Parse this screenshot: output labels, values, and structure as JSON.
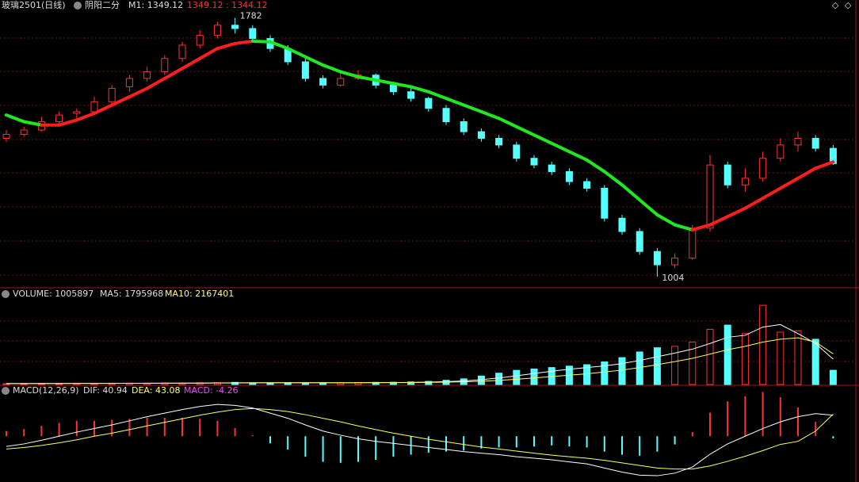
{
  "header": {
    "symbol": "玻璃2501(日线)",
    "indicator": "阴阳二分",
    "m1": "M1: 1349.12",
    "quote": "1349.12 : 1344.12"
  },
  "main": {
    "type": "candlestick",
    "ylim": [
      990,
      1800
    ],
    "up_color": "#ff3232",
    "down_color": "#54ffff",
    "rise_color": "#ff1e1e",
    "fall_color": "#1fe81f",
    "high_label": 1782,
    "low_label": 1004,
    "ohlc": [
      [
        1420,
        1445,
        1410,
        1432
      ],
      [
        1432,
        1455,
        1425,
        1445
      ],
      [
        1445,
        1485,
        1440,
        1470
      ],
      [
        1470,
        1500,
        1460,
        1490
      ],
      [
        1495,
        1510,
        1480,
        1500
      ],
      [
        1500,
        1545,
        1495,
        1530
      ],
      [
        1530,
        1580,
        1525,
        1570
      ],
      [
        1575,
        1610,
        1560,
        1600
      ],
      [
        1600,
        1635,
        1590,
        1620
      ],
      [
        1620,
        1670,
        1610,
        1660
      ],
      [
        1660,
        1710,
        1650,
        1700
      ],
      [
        1700,
        1745,
        1690,
        1730
      ],
      [
        1730,
        1770,
        1720,
        1760
      ],
      [
        1760,
        1782,
        1735,
        1750
      ],
      [
        1750,
        1760,
        1710,
        1720
      ],
      [
        1720,
        1730,
        1680,
        1690
      ],
      [
        1690,
        1700,
        1640,
        1650
      ],
      [
        1650,
        1660,
        1590,
        1600
      ],
      [
        1600,
        1610,
        1570,
        1580
      ],
      [
        1580,
        1615,
        1575,
        1600
      ],
      [
        1600,
        1625,
        1595,
        1610
      ],
      [
        1610,
        1615,
        1570,
        1580
      ],
      [
        1580,
        1590,
        1550,
        1560
      ],
      [
        1560,
        1570,
        1530,
        1540
      ],
      [
        1540,
        1545,
        1500,
        1510
      ],
      [
        1510,
        1520,
        1460,
        1470
      ],
      [
        1470,
        1480,
        1430,
        1440
      ],
      [
        1440,
        1450,
        1410,
        1420
      ],
      [
        1420,
        1430,
        1390,
        1400
      ],
      [
        1400,
        1410,
        1350,
        1360
      ],
      [
        1360,
        1370,
        1330,
        1340
      ],
      [
        1340,
        1350,
        1310,
        1320
      ],
      [
        1320,
        1330,
        1280,
        1290
      ],
      [
        1290,
        1300,
        1260,
        1270
      ],
      [
        1270,
        1280,
        1170,
        1180
      ],
      [
        1180,
        1190,
        1130,
        1140
      ],
      [
        1140,
        1150,
        1070,
        1080
      ],
      [
        1080,
        1090,
        1004,
        1040
      ],
      [
        1040,
        1075,
        1030,
        1060
      ],
      [
        1060,
        1160,
        1055,
        1150
      ],
      [
        1150,
        1370,
        1140,
        1340
      ],
      [
        1340,
        1350,
        1270,
        1280
      ],
      [
        1280,
        1330,
        1260,
        1300
      ],
      [
        1300,
        1380,
        1290,
        1360
      ],
      [
        1360,
        1420,
        1350,
        1400
      ],
      [
        1400,
        1440,
        1380,
        1420
      ],
      [
        1420,
        1430,
        1380,
        1390
      ],
      [
        1390,
        1400,
        1340,
        1344.12
      ]
    ],
    "line": [
      1490,
      1470,
      1460,
      1460,
      1475,
      1495,
      1520,
      1545,
      1570,
      1600,
      1630,
      1660,
      1690,
      1705,
      1712,
      1710,
      1690,
      1665,
      1640,
      1620,
      1605,
      1595,
      1585,
      1575,
      1560,
      1540,
      1520,
      1500,
      1480,
      1455,
      1430,
      1405,
      1380,
      1355,
      1320,
      1280,
      1235,
      1190,
      1160,
      1145,
      1160,
      1185,
      1210,
      1240,
      1270,
      1300,
      1330,
      1349.12
    ]
  },
  "volume": {
    "title": "VOLUME: 1005897",
    "ma5_label": "MA5: 1795968",
    "ma10_label": "MA10: 2167401",
    "ylim": [
      0,
      6000000
    ],
    "ma5_color": "#ffffff",
    "ma10_color": "#ffff66",
    "values": [
      60000,
      70000,
      80000,
      70000,
      90000,
      80000,
      90000,
      100000,
      90000,
      110000,
      100000,
      120000,
      130000,
      150000,
      120000,
      110000,
      130000,
      120000,
      110000,
      130000,
      140000,
      150000,
      160000,
      180000,
      220000,
      300000,
      400000,
      600000,
      800000,
      1000000,
      1100000,
      1200000,
      1300000,
      1400000,
      1600000,
      1900000,
      2300000,
      2600000,
      2700000,
      3000000,
      3900000,
      4200000,
      3600000,
      5600000,
      3700000,
      3800000,
      3200000,
      1005897
    ],
    "ma5": [
      60000,
      65000,
      70000,
      72000,
      74000,
      78000,
      82000,
      86000,
      90000,
      92000,
      95000,
      100000,
      110000,
      120000,
      125000,
      126000,
      128000,
      127000,
      124000,
      122000,
      126000,
      130000,
      138000,
      146000,
      170000,
      200000,
      250000,
      340000,
      460000,
      620000,
      780000,
      940000,
      1080000,
      1200000,
      1320000,
      1480000,
      1700000,
      1960000,
      2220000,
      2500000,
      2900000,
      3340000,
      3480000,
      4060000,
      4240000,
      3600000,
      2900000,
      1795968
    ],
    "ma10": [
      70000,
      70000,
      72000,
      73000,
      75000,
      77000,
      80000,
      83000,
      86000,
      90000,
      93000,
      97000,
      102000,
      108000,
      112000,
      116000,
      120000,
      122000,
      124000,
      125000,
      126000,
      128000,
      132000,
      138000,
      148000,
      165000,
      190000,
      230000,
      290000,
      370000,
      460000,
      560000,
      660000,
      760000,
      880000,
      1020000,
      1200000,
      1400000,
      1620000,
      1850000,
      2150000,
      2460000,
      2700000,
      3000000,
      3200000,
      3300000,
      3000000,
      2167401
    ]
  },
  "macd": {
    "title": "MACD(12,26,9)",
    "dif_label": "DIF: 40.94",
    "dea_label": "DEA: 43.08",
    "macd_label": "MACD: -4.26",
    "ylim": [
      -80,
      90
    ],
    "dif_color": "#ffffff",
    "dea_color": "#ffff66",
    "pos_color": "#ff3232",
    "neg_color": "#54ffff",
    "dif": [
      -20,
      -15,
      -8,
      0,
      8,
      15,
      22,
      30,
      38,
      45,
      52,
      58,
      62,
      60,
      55,
      45,
      35,
      22,
      10,
      2,
      -5,
      -10,
      -14,
      -18,
      -22,
      -26,
      -30,
      -33,
      -36,
      -40,
      -43,
      -46,
      -50,
      -54,
      -62,
      -70,
      -76,
      -77,
      -72,
      -60,
      -35,
      -15,
      0,
      15,
      28,
      38,
      44,
      40.94
    ],
    "dea": [
      -25,
      -22,
      -18,
      -13,
      -7,
      0,
      6,
      13,
      20,
      27,
      34,
      41,
      47,
      52,
      54,
      52,
      48,
      42,
      35,
      28,
      20,
      13,
      6,
      0,
      -6,
      -11,
      -16,
      -21,
      -25,
      -29,
      -33,
      -37,
      -40,
      -43,
      -47,
      -52,
      -57,
      -62,
      -64,
      -64,
      -58,
      -49,
      -39,
      -28,
      -16,
      -10,
      10,
      43.08
    ],
    "hist": [
      10,
      14,
      20,
      26,
      30,
      30,
      32,
      34,
      36,
      36,
      36,
      34,
      30,
      16,
      2,
      -14,
      -26,
      -40,
      -50,
      -52,
      -50,
      -46,
      -40,
      -36,
      -32,
      -30,
      -28,
      -24,
      -22,
      -22,
      -20,
      -18,
      -20,
      -22,
      -30,
      -36,
      -38,
      -30,
      -16,
      8,
      46,
      68,
      78,
      86,
      76,
      56,
      28,
      -4.26
    ]
  }
}
